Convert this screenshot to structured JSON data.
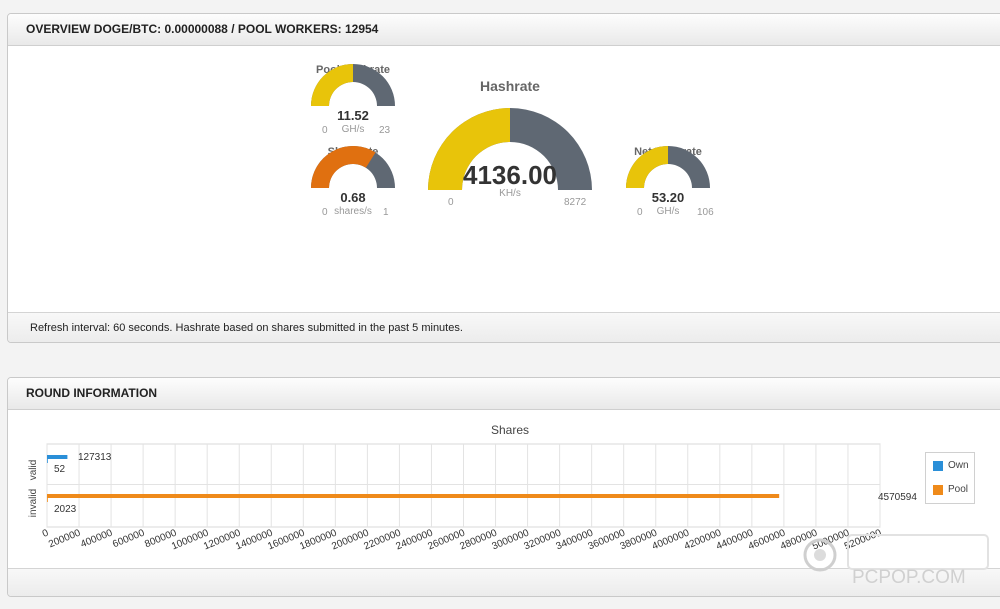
{
  "overview": {
    "title": "OVERVIEW DOGE/BTC: 0.00000088 / POOL WORKERS: 12954",
    "footer": "Refresh interval: 60 seconds. Hashrate based on shares submitted in the past 5 minutes."
  },
  "gauges": {
    "pool_hashrate": {
      "title": "Pool Hashrate",
      "value": "11.52",
      "unit": "GH/s",
      "min": "0",
      "max": "23",
      "fraction": 0.5,
      "fill": "#e8c40a"
    },
    "sharerate": {
      "title": "Sharerate",
      "value": "0.68",
      "unit": "shares/s",
      "min": "0",
      "max": "1",
      "fraction": 0.68,
      "fill": "#e07010"
    },
    "hashrate": {
      "title": "Hashrate",
      "value": "4136.00",
      "unit": "KH/s",
      "min": "0",
      "max": "8272",
      "fraction": 0.5,
      "fill": "#e8c40a"
    },
    "net_hashrate": {
      "title": "Net Hashrate",
      "value": "53.20",
      "unit": "GH/s",
      "min": "0",
      "max": "106",
      "fraction": 0.5,
      "fill": "#e8c40a"
    }
  },
  "round": {
    "title": "ROUND INFORMATION"
  },
  "chart_data": {
    "type": "bar",
    "orientation": "horizontal",
    "title": "Shares",
    "ylabel_categories": [
      "valid",
      "invalid"
    ],
    "series": [
      {
        "name": "Own",
        "color": "#2a8fd8",
        "values": [
          127313,
          52
        ]
      },
      {
        "name": "Pool",
        "color": "#ef8a1a",
        "values": [
          4570594,
          2023
        ]
      }
    ],
    "data_labels": {
      "own_valid": "127313",
      "own_invalid": "52",
      "pool_valid": "4570594",
      "pool_invalid": "2023"
    },
    "xticks": [
      "0",
      "200000",
      "400000",
      "600000",
      "800000",
      "1000000",
      "1200000",
      "1400000",
      "1600000",
      "1800000",
      "2000000",
      "2200000",
      "2400000",
      "2600000",
      "2800000",
      "3000000",
      "3200000",
      "3400000",
      "3600000",
      "3800000",
      "4000000",
      "4200000",
      "4400000",
      "4600000",
      "4800000",
      "5000000",
      "5200000"
    ],
    "xlim": [
      0,
      5200000
    ],
    "grid": true,
    "legend_position": "right"
  },
  "watermark": {
    "site": "PCPOP.COM"
  }
}
